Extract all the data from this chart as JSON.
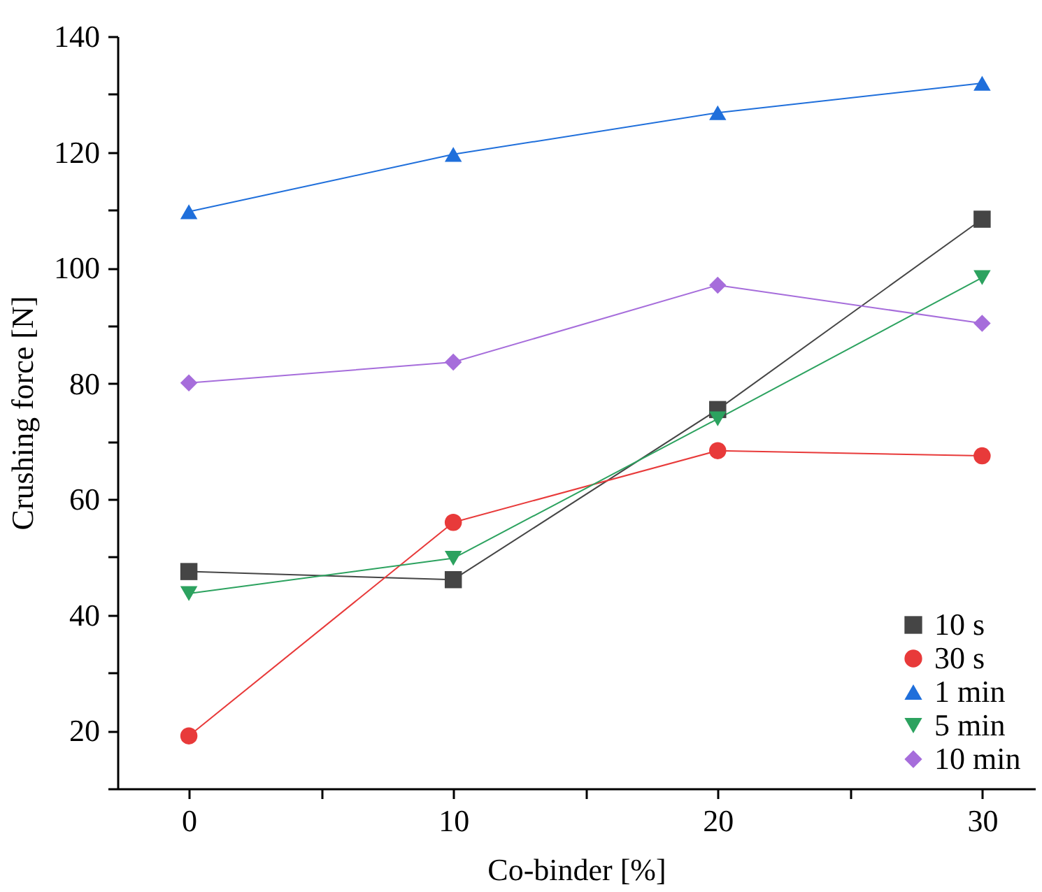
{
  "chart_data": {
    "type": "line",
    "xlabel": "Co-binder [%]",
    "ylabel": "Crushing force [N]",
    "x": [
      0,
      10,
      20,
      30
    ],
    "xlim": [
      -2.7,
      32
    ],
    "ylim": [
      10,
      140
    ],
    "xticks": [
      0,
      {
        "value": 5,
        "label": null
      },
      10,
      {
        "value": 15,
        "label": null
      },
      20,
      {
        "value": 25,
        "label": null
      },
      30
    ],
    "yticks": [
      {
        "value": 10,
        "label": null
      },
      20,
      {
        "value": 30,
        "label": null
      },
      40,
      {
        "value": 50,
        "label": null
      },
      60,
      {
        "value": 70,
        "label": null
      },
      80,
      {
        "value": 90,
        "label": null
      },
      100,
      {
        "value": 110,
        "label": null
      },
      120,
      {
        "value": 130,
        "label": null
      },
      140
    ],
    "grid": false,
    "legend": "bottom right",
    "line_style": "solid",
    "series": [
      {
        "name": "10 s",
        "color": "#454545",
        "marker": "square",
        "values": [
          47.5,
          46.1,
          75.5,
          108.4
        ]
      },
      {
        "name": "30 s",
        "color": "#e83a3a",
        "marker": "circle",
        "values": [
          19.1,
          56.0,
          68.4,
          67.5
        ]
      },
      {
        "name": "1 min",
        "color": "#1f6fdb",
        "marker": "triangle",
        "values": [
          109.7,
          119.6,
          126.8,
          131.9
        ]
      },
      {
        "name": "5 min",
        "color": "#2ca25f",
        "marker": "triangle-down",
        "values": [
          43.7,
          49.8,
          73.9,
          98.3
        ]
      },
      {
        "name": "10 min",
        "color": "#a66ddb",
        "marker": "diamond",
        "values": [
          80.1,
          83.7,
          97.0,
          90.4
        ]
      }
    ]
  }
}
